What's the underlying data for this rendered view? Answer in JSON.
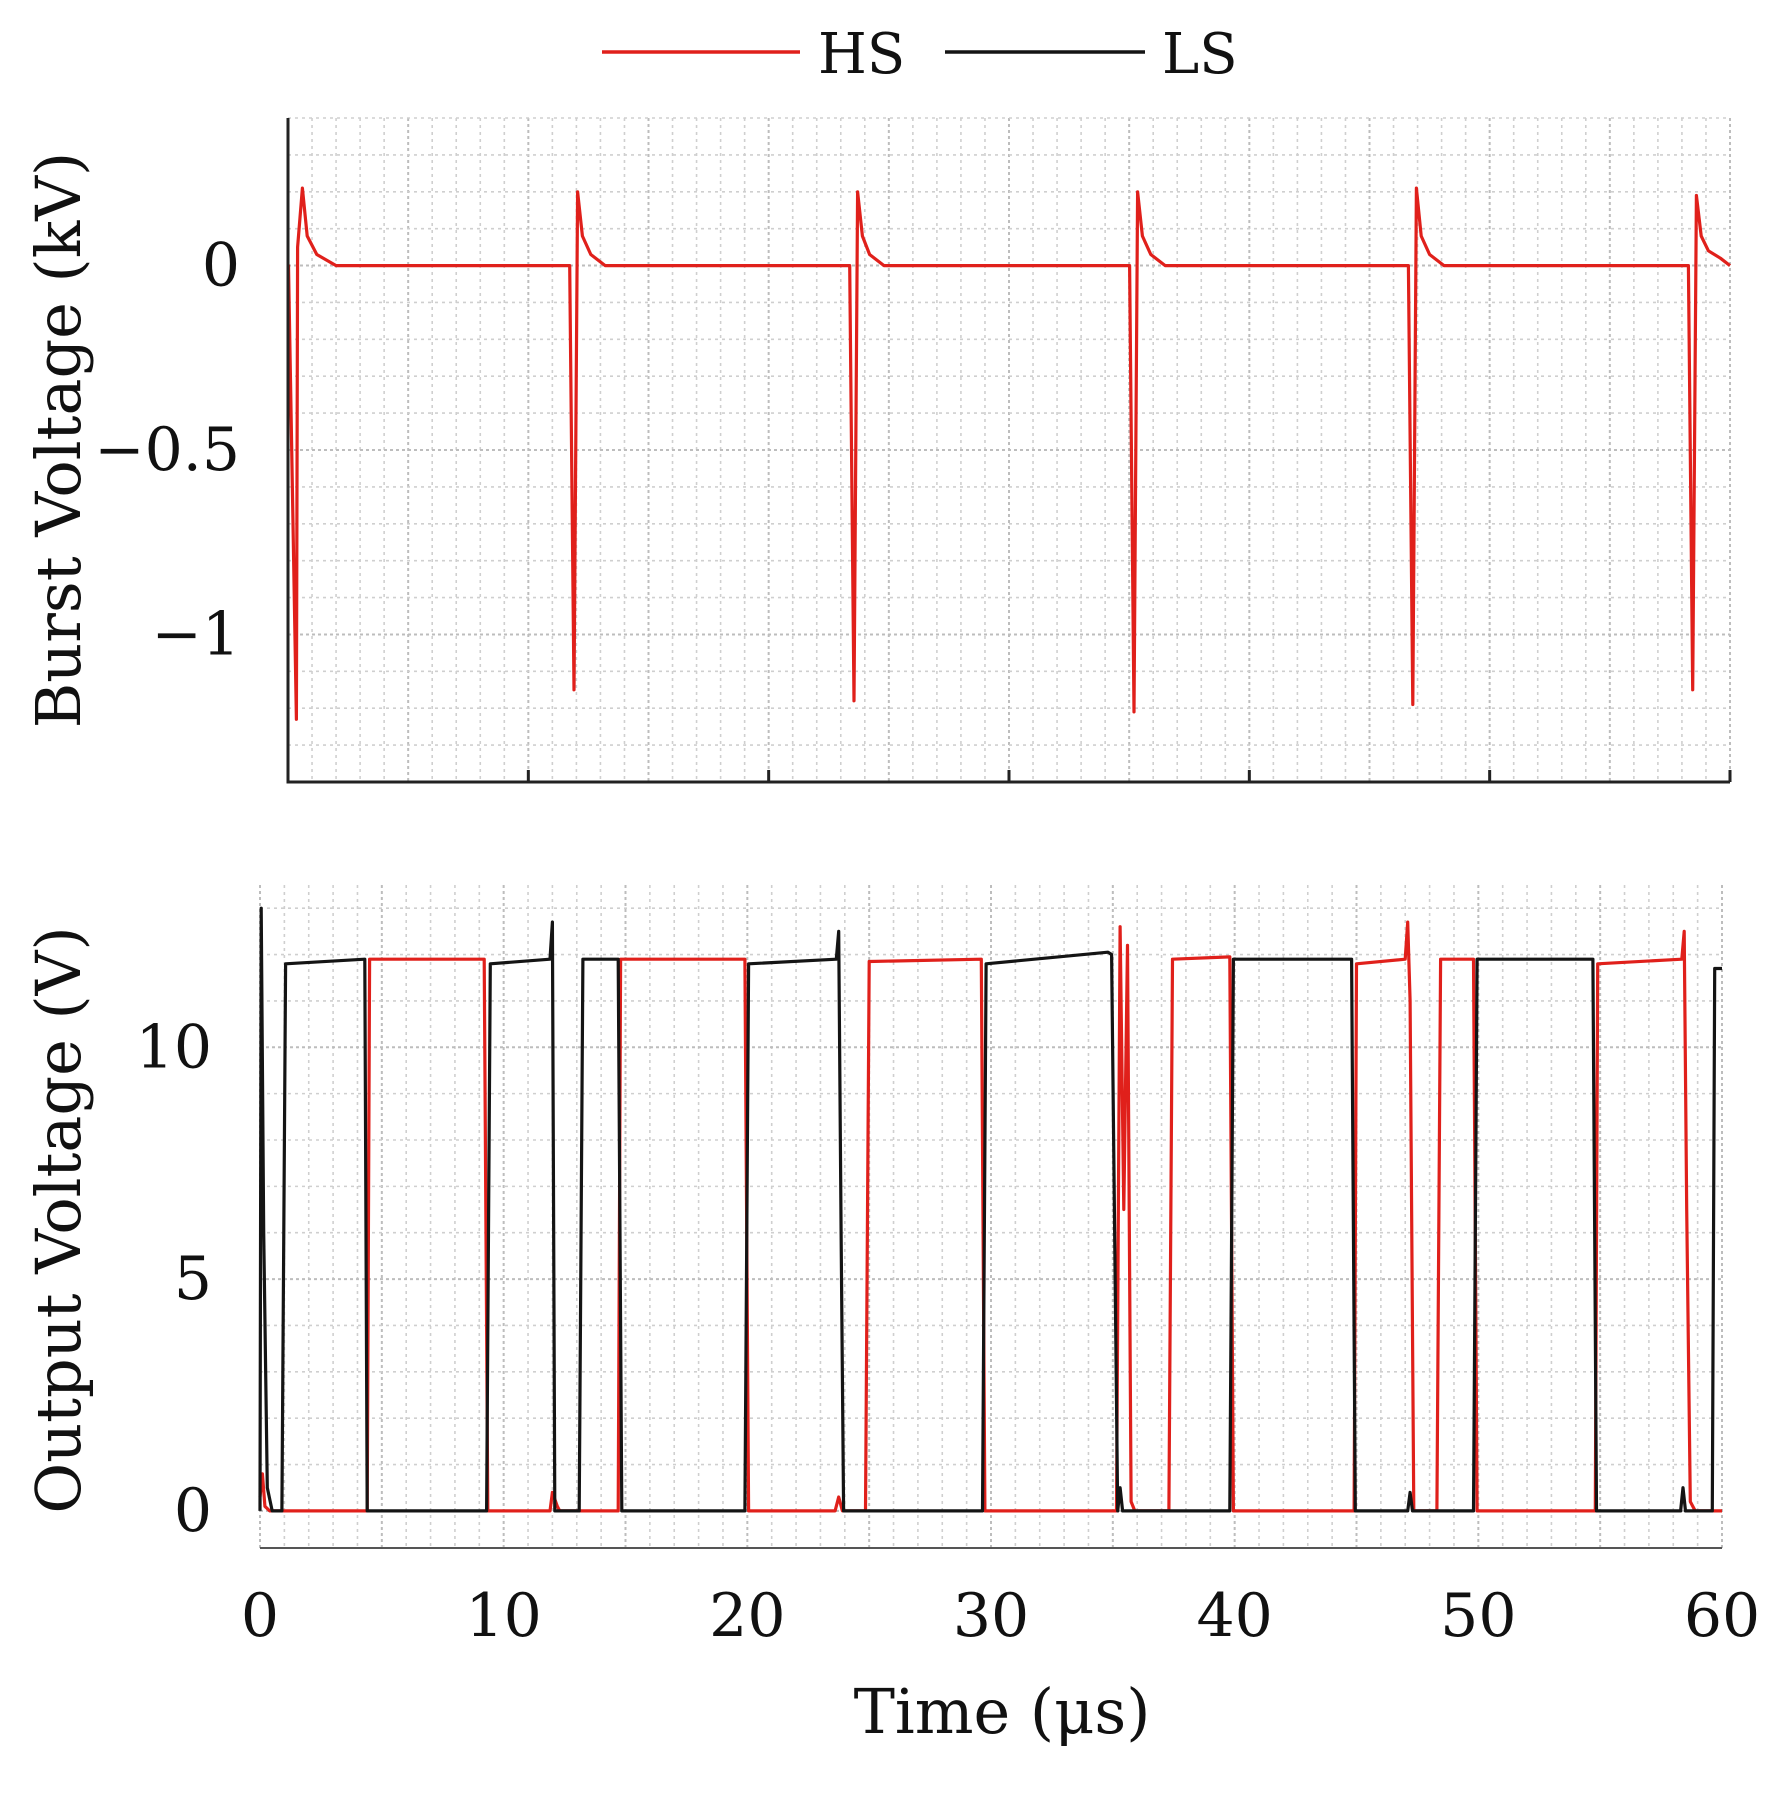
{
  "chart_data": [
    {
      "type": "line",
      "ylabel": "Burst Voltage (kV)",
      "xlabel": "",
      "xlim": [
        0,
        60
      ],
      "ylim": [
        -1.4,
        0.4
      ],
      "yticks": [
        0,
        -0.5,
        -1
      ],
      "ytick_labels": [
        "0",
        "−0.5",
        "−1"
      ],
      "xticks": [
        0,
        10,
        20,
        30,
        40,
        50,
        60
      ],
      "show_xtick_labels": false,
      "grid": true,
      "series": [
        {
          "name": "HS",
          "color": "#e0201b",
          "x": [
            0,
            0.02,
            0.35,
            0.4,
            0.6,
            0.8,
            1.2,
            2,
            11.7,
            11.72,
            11.9,
            12.05,
            12.25,
            12.6,
            13.2,
            14,
            23.35,
            23.37,
            23.55,
            23.7,
            23.9,
            24.2,
            24.8,
            25.6,
            35,
            35.02,
            35.2,
            35.35,
            35.55,
            35.9,
            36.5,
            37.3,
            46.6,
            46.62,
            46.8,
            46.95,
            47.15,
            47.5,
            48.1,
            48.9,
            58.25,
            58.27,
            58.45,
            58.6,
            58.8,
            59.1,
            59.6,
            60
          ],
          "y": [
            0,
            0,
            -1.23,
            0.05,
            0.21,
            0.08,
            0.03,
            0,
            0,
            0,
            -1.15,
            0.2,
            0.08,
            0.03,
            0,
            0,
            0,
            0,
            -1.18,
            0.2,
            0.08,
            0.03,
            0,
            0,
            0,
            0,
            -1.21,
            0.2,
            0.08,
            0.03,
            0,
            0,
            0,
            0,
            -1.19,
            0.21,
            0.08,
            0.03,
            0,
            0,
            0,
            0,
            -1.15,
            0.19,
            0.08,
            0.04,
            0.02,
            0
          ]
        }
      ]
    },
    {
      "type": "line",
      "ylabel": "Output Voltage (V)",
      "xlabel": "Time (μs)",
      "xlim": [
        0,
        60
      ],
      "ylim": [
        -0.8,
        13.5
      ],
      "yticks": [
        0,
        5,
        10
      ],
      "ytick_labels": [
        "0",
        "5",
        "10"
      ],
      "xticks": [
        0,
        10,
        20,
        30,
        40,
        50,
        60
      ],
      "xtick_labels": [
        "0",
        "10",
        "20",
        "30",
        "40",
        "50",
        "60"
      ],
      "grid": true,
      "series": [
        {
          "name": "HS",
          "color": "#e0201b",
          "x": [
            0,
            0.1,
            0.2,
            0.4,
            4.4,
            4.5,
            9.2,
            9.35,
            9.45,
            11.9,
            12.0,
            12.2,
            12.3,
            14.7,
            14.8,
            19.9,
            20.05,
            20.15,
            23.6,
            23.75,
            23.9,
            24.05,
            24.85,
            25.0,
            29.6,
            29.75,
            29.85,
            35.15,
            35.3,
            35.45,
            35.6,
            35.75,
            35.9,
            37.3,
            37.45,
            39.8,
            39.95,
            40.05,
            44.9,
            45.0,
            47.0,
            47.1,
            47.2,
            47.35,
            48.3,
            48.45,
            49.8,
            49.95,
            50.05,
            54.8,
            54.9,
            58.35,
            58.45,
            58.55,
            58.7,
            58.9,
            60
          ],
          "y": [
            0.3,
            0.8,
            0.1,
            0,
            0,
            11.9,
            11.9,
            0,
            0,
            0,
            0.4,
            0.1,
            0,
            0,
            11.9,
            11.9,
            0,
            0,
            0,
            0.3,
            0,
            0,
            0,
            11.85,
            11.9,
            0,
            0,
            0,
            12.6,
            6.5,
            12.2,
            0.2,
            0,
            0,
            11.9,
            11.95,
            0,
            0,
            0,
            11.8,
            11.9,
            12.7,
            11.0,
            0,
            0,
            11.9,
            11.9,
            0,
            0,
            0,
            11.8,
            11.9,
            12.5,
            6.5,
            0.2,
            0,
            0
          ]
        },
        {
          "name": "LS",
          "color": "#141414",
          "x": [
            0,
            0.05,
            0.15,
            0.3,
            0.5,
            0.9,
            1.05,
            4.3,
            4.4,
            9.3,
            9.45,
            11.9,
            12.0,
            12.1,
            13.1,
            13.25,
            14.7,
            14.85,
            19.9,
            20.05,
            23.65,
            23.75,
            23.85,
            23.95,
            29.65,
            29.8,
            34.8,
            34.95,
            35.2,
            35.3,
            35.4,
            39.8,
            39.95,
            44.8,
            44.95,
            47.1,
            47.2,
            47.3,
            49.8,
            49.95,
            54.7,
            54.85,
            58.3,
            58.4,
            58.5,
            59.6,
            59.7,
            60
          ],
          "y": [
            0,
            13.0,
            6.0,
            0.5,
            0,
            0,
            11.8,
            11.9,
            0,
            0,
            11.8,
            11.9,
            12.7,
            0,
            0,
            11.9,
            11.9,
            0,
            0,
            11.8,
            11.9,
            12.5,
            6.0,
            0,
            0,
            11.8,
            12.05,
            12.0,
            0,
            0.5,
            0,
            0,
            11.9,
            11.9,
            0,
            0,
            0.4,
            0,
            0,
            11.9,
            11.9,
            0,
            0,
            0.5,
            0,
            0,
            11.7,
            11.7
          ]
        }
      ]
    }
  ]
}
